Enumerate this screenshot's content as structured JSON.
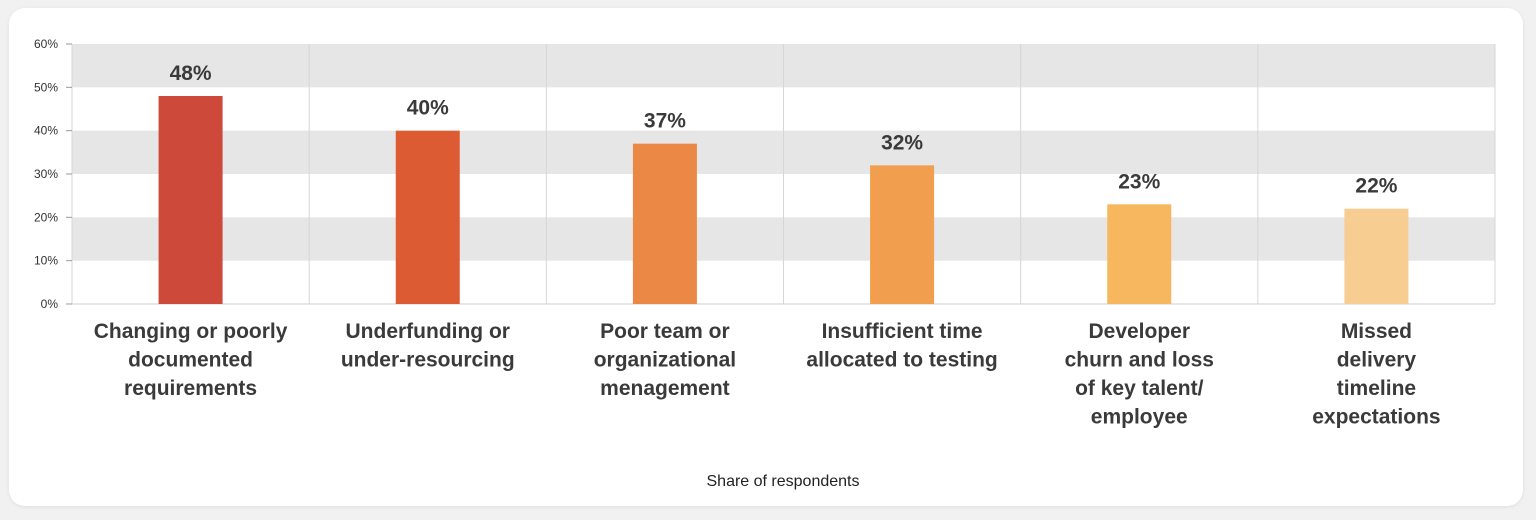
{
  "chart_data": {
    "type": "bar",
    "categories": [
      "Changing or poorly documented requirements",
      "Underfunding or under-resourcing",
      "Poor team or organizational menagement",
      "Insufficient time allocated to testing",
      "Developer churn and loss of key talent/ employee",
      "Missed delivery timeline expectations"
    ],
    "category_lines": [
      [
        "Changing or poorly",
        "documented",
        "requirements"
      ],
      [
        "Underfunding or",
        "under-resourcing"
      ],
      [
        "Poor team or",
        "organizational",
        "menagement"
      ],
      [
        "Insufficient time",
        "allocated to testing"
      ],
      [
        "Developer",
        "churn and loss",
        "of key talent/",
        "employee"
      ],
      [
        "Missed",
        "delivery",
        "timeline",
        "expectations"
      ]
    ],
    "values": [
      48,
      40,
      37,
      32,
      23,
      22
    ],
    "value_labels": [
      "48%",
      "40%",
      "37%",
      "32%",
      "23%",
      "22%"
    ],
    "bar_colors": [
      "#cd4a3a",
      "#dd5b32",
      "#ec8845",
      "#f19f4e",
      "#f7b75e",
      "#f8cd92"
    ],
    "xlabel": "Share of respondents",
    "ylabel": "",
    "ylim": [
      0,
      60
    ],
    "yticks": [
      0,
      10,
      20,
      30,
      40,
      50,
      60
    ],
    "ytick_labels": [
      "0%",
      "10%",
      "20%",
      "30%",
      "40%",
      "50%",
      "60%"
    ],
    "grid": true,
    "band_color": "#e6e6e6",
    "legend": "none"
  }
}
